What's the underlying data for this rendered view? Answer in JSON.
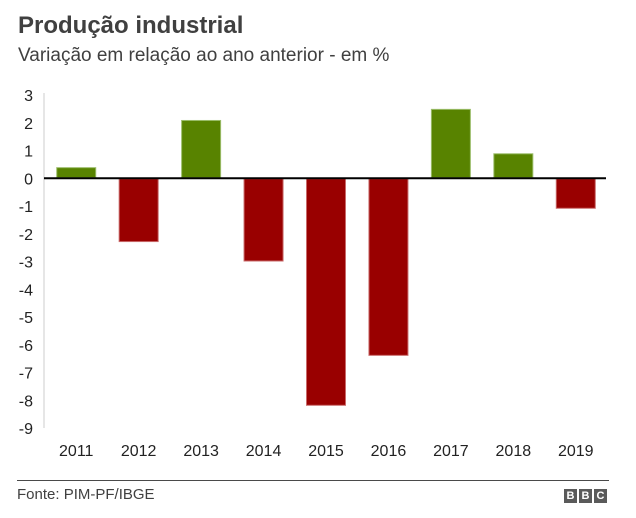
{
  "chart_data": {
    "type": "bar",
    "title": "Produção industrial",
    "subtitle": "Variação em relação ao ano anterior - em %",
    "categories": [
      "2011",
      "2012",
      "2013",
      "2014",
      "2015",
      "2016",
      "2017",
      "2018",
      "2019"
    ],
    "values": [
      0.4,
      -2.3,
      2.1,
      -3.0,
      -8.2,
      -6.4,
      2.5,
      0.9,
      -1.1
    ],
    "xlabel": "",
    "ylabel": "",
    "ylim": [
      -9,
      3
    ],
    "yticks": [
      3,
      2,
      1,
      0,
      -1,
      -2,
      -3,
      -4,
      -5,
      -6,
      -7,
      -8,
      -9
    ],
    "grid": false,
    "colors": {
      "positive": "#588300",
      "negative": "#990000",
      "positive_edge": "#9bbd6a",
      "negative_edge": "#c96a6a"
    },
    "source": "Fonte: PIM-PF/IBGE"
  },
  "branding": {
    "logo_letters": [
      "B",
      "B",
      "C"
    ]
  }
}
